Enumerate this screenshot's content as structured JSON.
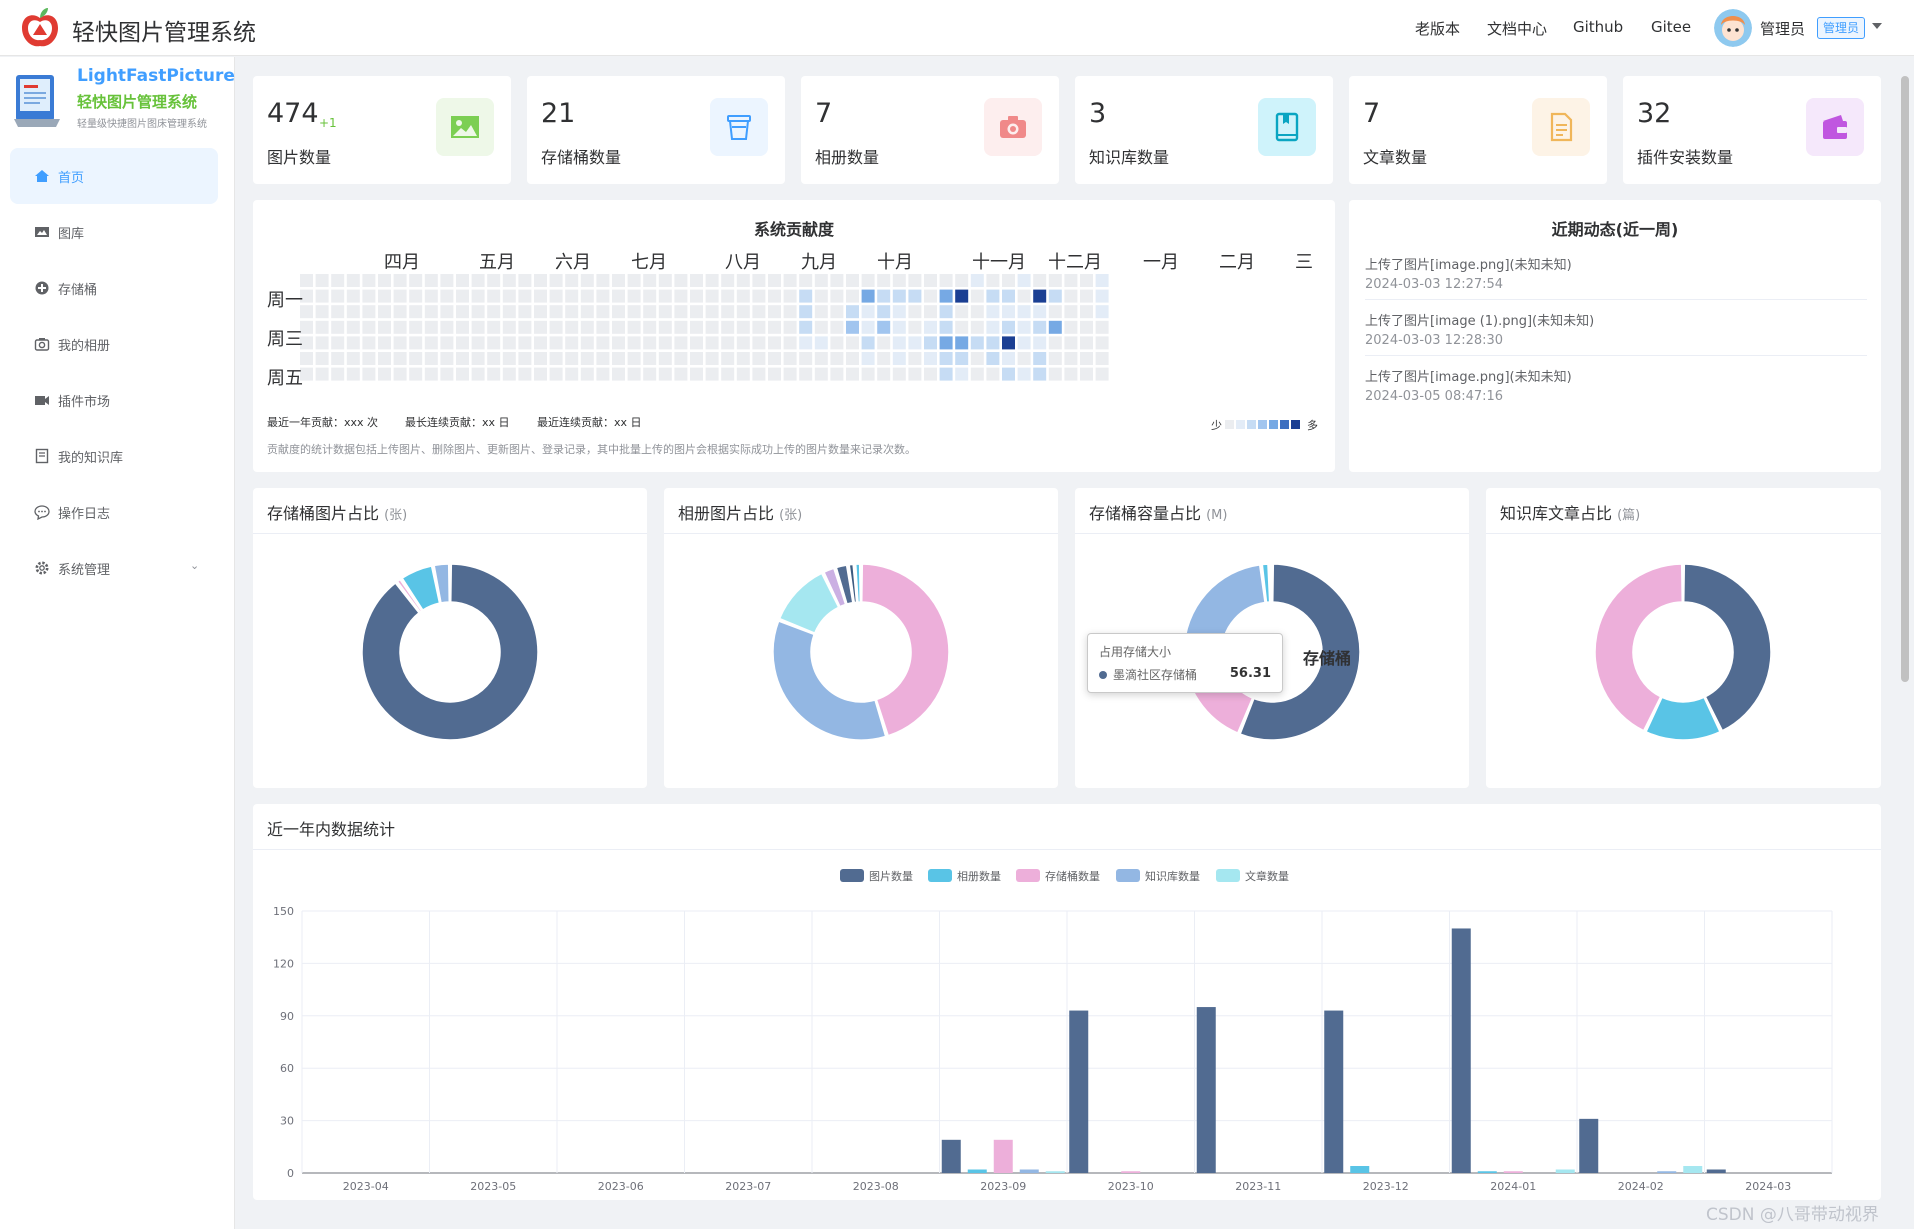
{
  "header": {
    "title": "轻快图片管理系统",
    "nav": [
      "老版本",
      "文档中心",
      "Github",
      "Gitee"
    ],
    "user_name": "管理员",
    "user_role": "管理员"
  },
  "sidebar": {
    "brand_en": "LightFastPicture",
    "brand_cn": "轻快图片管理系统",
    "brand_desc": "轻量级快捷图片图床管理系统",
    "items": [
      {
        "label": "首页",
        "icon": "home-icon",
        "active": true
      },
      {
        "label": "图库",
        "icon": "image-icon"
      },
      {
        "label": "存储桶",
        "icon": "bucket-icon"
      },
      {
        "label": "我的相册",
        "icon": "camera-icon"
      },
      {
        "label": "插件市场",
        "icon": "plugin-icon"
      },
      {
        "label": "我的知识库",
        "icon": "book-icon"
      },
      {
        "label": "操作日志",
        "icon": "chat-icon"
      },
      {
        "label": "系统管理",
        "icon": "gear-icon",
        "expandable": true
      }
    ]
  },
  "stats": [
    {
      "value": "474",
      "delta": "+1",
      "label": "图片数量",
      "icon": "image-icon",
      "color": "#67c23a",
      "bg": "#eef8e8"
    },
    {
      "value": "21",
      "label": "存储桶数量",
      "icon": "bucket-icon",
      "color": "#409eff",
      "bg": "#ecf5ff"
    },
    {
      "value": "7",
      "label": "相册数量",
      "icon": "camera-icon",
      "color": "#f56c6c",
      "bg": "#fdeeee"
    },
    {
      "value": "3",
      "label": "知识库数量",
      "icon": "book-icon",
      "color": "#0aa5c2",
      "bg": "#cff3fb"
    },
    {
      "value": "7",
      "label": "文章数量",
      "icon": "document-icon",
      "color": "#f0b65a",
      "bg": "#fdf3e6"
    },
    {
      "value": "32",
      "label": "插件安装数量",
      "icon": "wallet-icon",
      "color": "#c056e0",
      "bg": "#f5e8fb"
    }
  ],
  "contribution": {
    "title": "系统贡献度",
    "months": [
      "四月",
      "五月",
      "六月",
      "七月",
      "八月",
      "九月",
      "十月",
      "十一月",
      "十二月",
      "一月",
      "二月",
      "三"
    ],
    "weekdays": [
      "周一",
      "周三",
      "周五"
    ],
    "stat1": "最近一年贡献：xxx 次",
    "stat2": "最长连续贡献：xx 日",
    "stat3": "最近连续贡献：xx 日",
    "legend_less": "少",
    "legend_more": "多",
    "scale_colors": [
      "#ebedf0",
      "#e3ecf7",
      "#c6dcf4",
      "#a1c5ef",
      "#76a9e4",
      "#3d6fc0",
      "#1b3f93"
    ],
    "note": "贡献度的统计数据包括上传图片、删除图片、更新图片、登录记录，其中批量上传的图片会根据实际成功上传的图片数量来记录次数。"
  },
  "activity": {
    "title": "近期动态(近一周)",
    "items": [
      {
        "text": "上传了图片[image.png](未知未知)",
        "time": "2024-03-03 12:27:54"
      },
      {
        "text": "上传了图片[image (1).png](未知未知)",
        "time": "2024-03-03 12:28:30"
      },
      {
        "text": "上传了图片[image.png](未知未知)",
        "time": "2024-03-05 08:47:16"
      }
    ]
  },
  "donuts": [
    {
      "title": "存储桶图片占比",
      "unit": "(张)"
    },
    {
      "title": "相册图片占比",
      "unit": "(张)"
    },
    {
      "title": "存储桶容量占比",
      "unit": "(M)",
      "center_label": "存储桶",
      "tooltip": {
        "title": "占用存储大小",
        "name": "墨滴社区存储桶",
        "value": "56.31"
      }
    },
    {
      "title": "知识库文章占比",
      "unit": "(篇)"
    }
  ],
  "bar_chart": {
    "title": "近一年内数据统计"
  },
  "chart_data": [
    {
      "type": "heatmap",
      "title": "系统贡献度",
      "rows": 7,
      "weeks": 52,
      "max_level": 6
    },
    {
      "type": "pie",
      "title": "存储桶图片占比",
      "unit": "张",
      "values": [
        86,
        1,
        6,
        3
      ]
    },
    {
      "type": "pie",
      "title": "相册图片占比",
      "unit": "张",
      "values": [
        38,
        30,
        10,
        2,
        2,
        1,
        1
      ]
    },
    {
      "type": "pie",
      "title": "存储桶容量占比",
      "unit": "M",
      "values": [
        56.31,
        19,
        23,
        1.5,
        0.5
      ]
    },
    {
      "type": "pie",
      "title": "知识库文章占比",
      "unit": "篇",
      "values": [
        3,
        1,
        3
      ]
    },
    {
      "type": "bar",
      "title": "近一年内数据统计",
      "categories": [
        "2023-04",
        "2023-05",
        "2023-06",
        "2023-07",
        "2023-08",
        "2023-09",
        "2023-10",
        "2023-11",
        "2023-12",
        "2024-01",
        "2024-02",
        "2024-03"
      ],
      "ylim": [
        0,
        150
      ],
      "yticks": [
        0,
        30,
        60,
        90,
        120,
        150
      ],
      "series": [
        {
          "name": "图片数量",
          "color": "#516b91",
          "values": [
            0,
            0,
            0,
            0,
            0,
            19,
            93,
            95,
            93,
            140,
            31,
            2
          ]
        },
        {
          "name": "相册数量",
          "color": "#59c4e6",
          "values": [
            0,
            0,
            0,
            0,
            0,
            2,
            0,
            0,
            4,
            1,
            0,
            0
          ]
        },
        {
          "name": "存储桶数量",
          "color": "#edafda",
          "values": [
            0,
            0,
            0,
            0,
            0,
            19,
            1,
            0,
            0,
            1,
            0,
            0
          ]
        },
        {
          "name": "知识库数量",
          "color": "#93b7e3",
          "values": [
            0,
            0,
            0,
            0,
            0,
            2,
            0,
            0,
            0,
            0,
            1,
            0
          ]
        },
        {
          "name": "文章数量",
          "color": "#a5e7f0",
          "values": [
            0,
            0,
            0,
            0,
            0,
            1,
            0,
            0,
            0,
            2,
            4,
            0
          ]
        }
      ]
    }
  ],
  "watermark": "CSDN @八哥带动视界"
}
